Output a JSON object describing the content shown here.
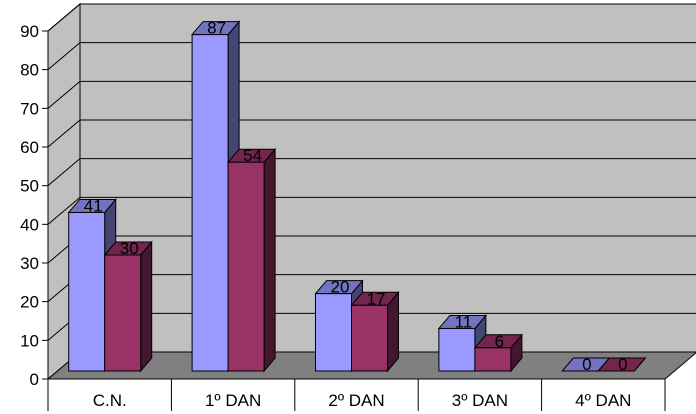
{
  "chart_data": {
    "type": "bar",
    "style": "3d-clustered-column",
    "categories": [
      "C.N.",
      "1º DAN",
      "2º DAN",
      "3º DAN",
      "4º DAN"
    ],
    "series": [
      {
        "values": [
          41,
          87,
          20,
          11,
          0
        ],
        "color": "#9999ff"
      },
      {
        "values": [
          30,
          54,
          17,
          6,
          0
        ],
        "color": "#993366"
      }
    ],
    "ylim": [
      0,
      90
    ],
    "yticks": [
      0,
      10,
      20,
      30,
      40,
      50,
      60,
      70,
      80,
      90
    ],
    "grid": true,
    "data_labels": true,
    "legend": "none",
    "colors": {
      "wall": "#c0c0c0",
      "floor": "#808080",
      "gridline": "#000000"
    }
  }
}
